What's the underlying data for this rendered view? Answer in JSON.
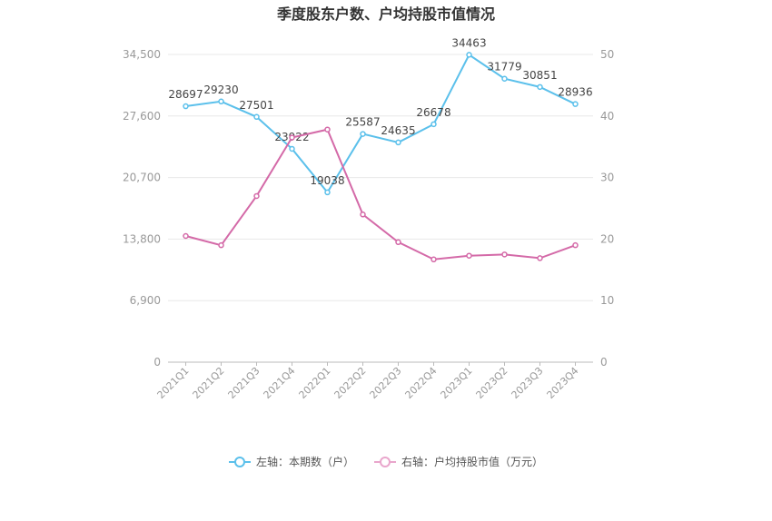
{
  "chart_data": {
    "type": "line",
    "title": "季度股东户数、户均持股市值情况",
    "categories": [
      "2021Q1",
      "2021Q2",
      "2021Q3",
      "2021Q4",
      "2022Q1",
      "2022Q2",
      "2022Q3",
      "2022Q4",
      "2023Q1",
      "2023Q2",
      "2023Q3",
      "2023Q4"
    ],
    "left_axis": {
      "ticks": [
        "0",
        "6,900",
        "13,800",
        "20,700",
        "27,600",
        "34,500"
      ],
      "ylim": [
        0,
        34500
      ]
    },
    "right_axis": {
      "ticks": [
        "0",
        "10",
        "20",
        "30",
        "40",
        "50"
      ],
      "ylim": [
        0,
        50
      ]
    },
    "series": [
      {
        "name": "左轴：本期数（户）",
        "axis": "left",
        "color": "#5bc0eb",
        "values": [
          28697,
          29230,
          27501,
          23922,
          19038,
          25587,
          24635,
          26678,
          34463,
          31779,
          30851,
          28936
        ],
        "labels": [
          "28697",
          "29230",
          "27501",
          "23922",
          "19038",
          "25587",
          "24635",
          "26678",
          "34463",
          "31779",
          "30851",
          "28936"
        ]
      },
      {
        "name": "右轴：户均持股市值（万元）",
        "axis": "right",
        "color": "#d46aa8",
        "values": [
          20.5,
          19.0,
          27.0,
          36.5,
          37.8,
          24.0,
          19.5,
          16.7,
          17.3,
          17.5,
          16.9,
          19.0
        ]
      }
    ],
    "grid": true,
    "legend_position": "bottom"
  }
}
